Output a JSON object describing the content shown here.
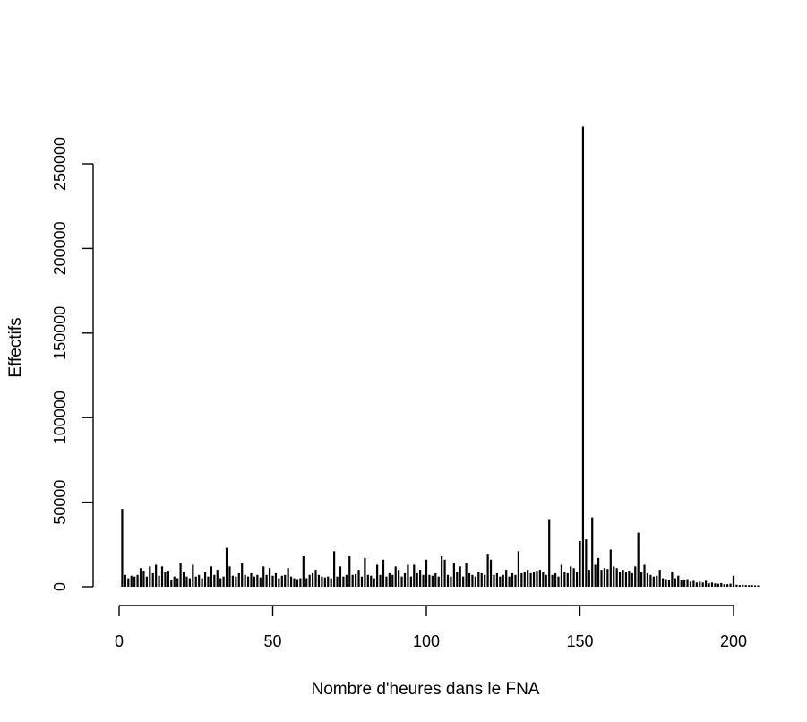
{
  "chart_data": {
    "type": "bar",
    "xlabel": "Nombre d'heures dans le FNA",
    "ylabel": "Effectifs",
    "xlim": [
      0,
      208
    ],
    "ylim": [
      0,
      250000
    ],
    "xticks": [
      0,
      50,
      100,
      150,
      200
    ],
    "yticks": [
      0,
      50000,
      100000,
      150000,
      200000,
      250000
    ],
    "grid": false,
    "x": [
      1,
      2,
      3,
      4,
      5,
      6,
      7,
      8,
      9,
      10,
      11,
      12,
      13,
      14,
      15,
      16,
      17,
      18,
      19,
      20,
      21,
      22,
      23,
      24,
      25,
      26,
      27,
      28,
      29,
      30,
      31,
      32,
      33,
      34,
      35,
      36,
      37,
      38,
      39,
      40,
      41,
      42,
      43,
      44,
      45,
      46,
      47,
      48,
      49,
      50,
      51,
      52,
      53,
      54,
      55,
      56,
      57,
      58,
      59,
      60,
      61,
      62,
      63,
      64,
      65,
      66,
      67,
      68,
      69,
      70,
      71,
      72,
      73,
      74,
      75,
      76,
      77,
      78,
      79,
      80,
      81,
      82,
      83,
      84,
      85,
      86,
      87,
      88,
      89,
      90,
      91,
      92,
      93,
      94,
      95,
      96,
      97,
      98,
      99,
      100,
      101,
      102,
      103,
      104,
      105,
      106,
      107,
      108,
      109,
      110,
      111,
      112,
      113,
      114,
      115,
      116,
      117,
      118,
      119,
      120,
      121,
      122,
      123,
      124,
      125,
      126,
      127,
      128,
      129,
      130,
      131,
      132,
      133,
      134,
      135,
      136,
      137,
      138,
      139,
      140,
      141,
      142,
      143,
      144,
      145,
      146,
      147,
      148,
      149,
      150,
      151,
      152,
      153,
      154,
      155,
      156,
      157,
      158,
      159,
      160,
      161,
      162,
      163,
      164,
      165,
      166,
      167,
      168,
      169,
      170,
      171,
      172,
      173,
      174,
      175,
      176,
      177,
      178,
      179,
      180,
      181,
      182,
      183,
      184,
      185,
      186,
      187,
      188,
      189,
      190,
      191,
      192,
      193,
      194,
      195,
      196,
      197,
      198,
      199,
      200,
      201,
      202,
      203,
      204,
      205,
      206,
      207,
      208
    ],
    "values": [
      46000,
      7000,
      5000,
      6500,
      6000,
      7000,
      11000,
      9500,
      6000,
      12000,
      8000,
      13000,
      6500,
      12000,
      9000,
      9500,
      4000,
      6000,
      5000,
      14000,
      9000,
      6000,
      5000,
      13000,
      6000,
      7000,
      5000,
      9000,
      6000,
      12000,
      7000,
      10000,
      5000,
      6000,
      23000,
      12000,
      6500,
      6000,
      8000,
      14000,
      7000,
      6000,
      8000,
      6000,
      7000,
      5500,
      12000,
      7000,
      11000,
      6500,
      8000,
      5000,
      6500,
      7000,
      11000,
      6000,
      5000,
      4500,
      5000,
      18000,
      5000,
      7000,
      8000,
      10000,
      7000,
      6000,
      5500,
      6000,
      5000,
      21000,
      6000,
      12000,
      6000,
      7000,
      18000,
      7000,
      7500,
      10000,
      6000,
      17000,
      7000,
      6500,
      5000,
      13000,
      7000,
      16000,
      6000,
      8000,
      7000,
      12000,
      10000,
      6000,
      8000,
      13000,
      6000,
      13000,
      8000,
      10000,
      7000,
      16000,
      7000,
      6500,
      8000,
      6000,
      18000,
      16000,
      7000,
      6000,
      14000,
      9000,
      12000,
      6000,
      14000,
      8000,
      7000,
      6000,
      9000,
      8000,
      7000,
      19000,
      16000,
      7000,
      8000,
      6000,
      7000,
      10000,
      6000,
      8000,
      7000,
      21000,
      8000,
      9000,
      10000,
      8000,
      9000,
      9500,
      10000,
      8500,
      7000,
      40000,
      7000,
      8000,
      6000,
      13000,
      9000,
      8000,
      12000,
      11000,
      9000,
      27000,
      272000,
      28000,
      10000,
      41000,
      13000,
      17000,
      10000,
      11000,
      10500,
      22000,
      12000,
      11000,
      9000,
      10000,
      9000,
      9500,
      8000,
      12000,
      32000,
      9000,
      13000,
      8000,
      7000,
      6000,
      6500,
      10000,
      5000,
      4500,
      4000,
      9000,
      5000,
      6500,
      4000,
      4000,
      4500,
      3000,
      3500,
      2500,
      3000,
      2500,
      3500,
      2000,
      2500,
      2000,
      1800,
      2200,
      1500,
      1500,
      1800,
      6500,
      1200,
      1000,
      1200,
      1000,
      900,
      1000,
      800,
      800
    ]
  }
}
